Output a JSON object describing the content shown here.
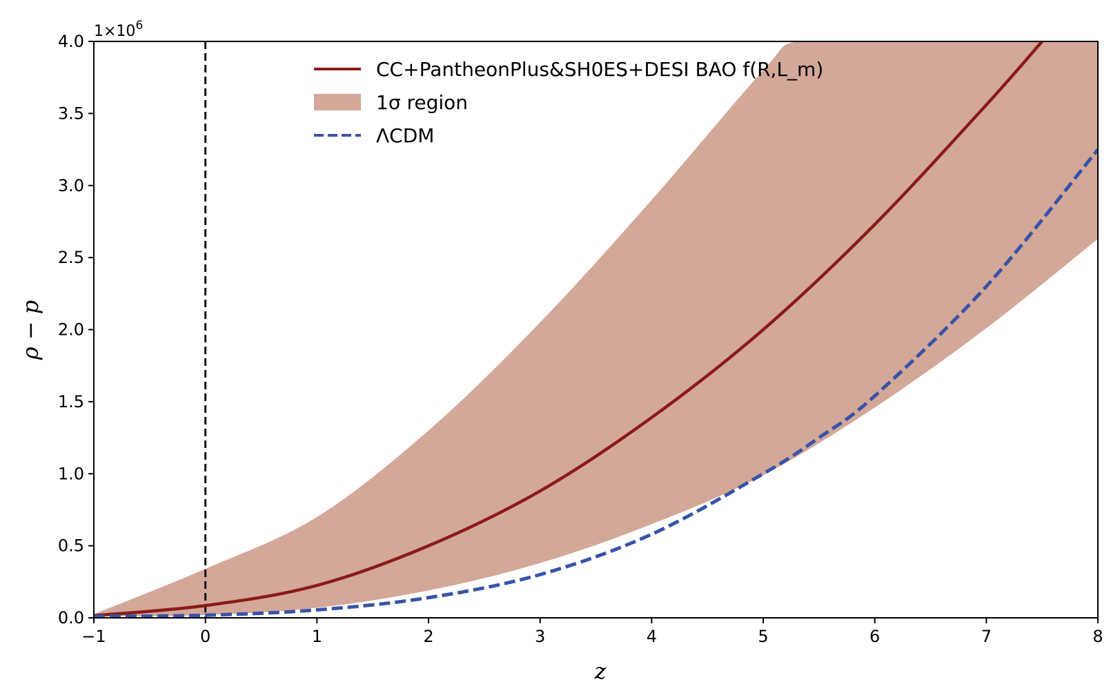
{
  "chart_data": {
    "type": "line",
    "xlabel": "z",
    "ylabel": "ρ − p",
    "xlim": [
      -1,
      8
    ],
    "ylim": [
      0,
      4000000
    ],
    "y_offset_label": "1×10",
    "y_offset_exponent": "6",
    "x_ticks": [
      -1,
      0,
      1,
      2,
      3,
      4,
      5,
      6,
      7,
      8
    ],
    "x_tick_labels": [
      "−1",
      "0",
      "1",
      "2",
      "3",
      "4",
      "5",
      "6",
      "7",
      "8"
    ],
    "y_ticks": [
      0,
      500000,
      1000000,
      1500000,
      2000000,
      2500000,
      3000000,
      3500000,
      4000000
    ],
    "y_tick_labels": [
      "0.0",
      "0.5",
      "1.0",
      "1.5",
      "2.0",
      "2.5",
      "3.0",
      "3.5",
      "4.0"
    ],
    "vertical_line_x": 0,
    "legend_position": "upper-center",
    "colors": {
      "model": "#8b1a1a",
      "band": "#d3a898",
      "lcdm": "#3853a8",
      "vline": "#111111"
    },
    "series": [
      {
        "name": "CC+PantheonPlus&SH0ES+DESI BAO f(R,L_m)",
        "style": "solid",
        "x": [
          -1,
          0,
          1,
          2,
          3,
          4,
          5,
          6,
          7,
          7.5
        ],
        "y": [
          15000,
          85000,
          225000,
          500000,
          880000,
          1390000,
          2000000,
          2730000,
          3560000,
          4000000
        ]
      },
      {
        "name": "ΛCDM",
        "style": "dashed",
        "x": [
          -1,
          0,
          1,
          2,
          3,
          4,
          5,
          5.5,
          6,
          7,
          8
        ],
        "y": [
          10000,
          18000,
          55000,
          140000,
          300000,
          580000,
          1000000,
          1250000,
          1540000,
          2300000,
          3250000
        ]
      }
    ],
    "band": {
      "name": "1σ region",
      "x": [
        -1,
        0,
        1,
        2,
        3,
        4,
        5,
        6,
        7,
        8
      ],
      "y_lower": [
        10000,
        20000,
        70000,
        190000,
        380000,
        650000,
        990000,
        1460000,
        2010000,
        2630000
      ],
      "y_upper": [
        25000,
        340000,
        700000,
        1300000,
        2050000,
        2900000,
        3800000,
        4000000,
        4000000,
        4000000
      ],
      "upper_extra": {
        "x": [
          5.3
        ],
        "y": [
          4000000
        ]
      }
    }
  }
}
